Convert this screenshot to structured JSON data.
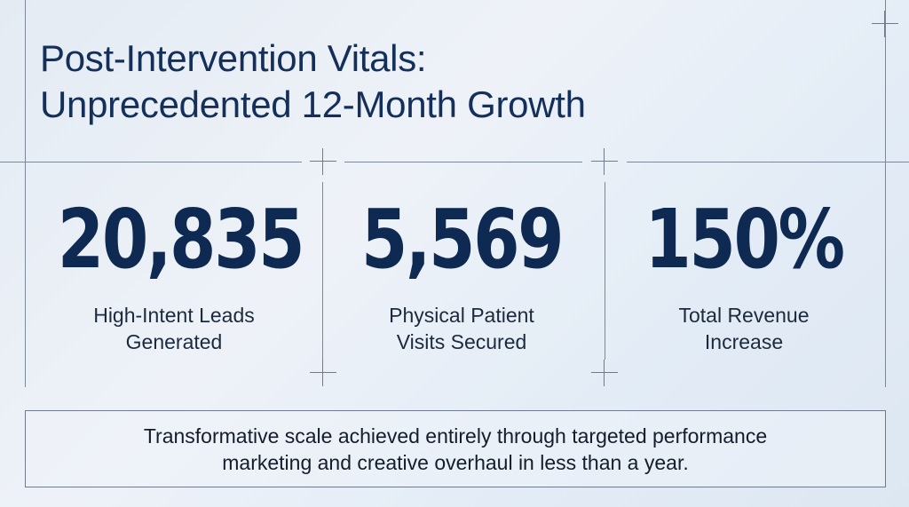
{
  "title": {
    "line1": "Post-Intervention Vitals:",
    "line2": "Unprecedented 12-Month Growth"
  },
  "stats": [
    {
      "value": "20,835",
      "label_line1": "High-Intent Leads",
      "label_line2": "Generated"
    },
    {
      "value": "5,569",
      "label_line1": "Physical Patient",
      "label_line2": "Visits Secured"
    },
    {
      "value": "150%",
      "label_line1": "Total Revenue",
      "label_line2": "Increase"
    }
  ],
  "footer": {
    "line1": "Transformative scale achieved entirely through targeted performance",
    "line2": "marketing and creative overhaul in less than a year."
  },
  "colors": {
    "title": "#14305a",
    "stat_value": "#0f2a52",
    "text": "#1c2a3d",
    "grid_line": "#7c8797"
  }
}
